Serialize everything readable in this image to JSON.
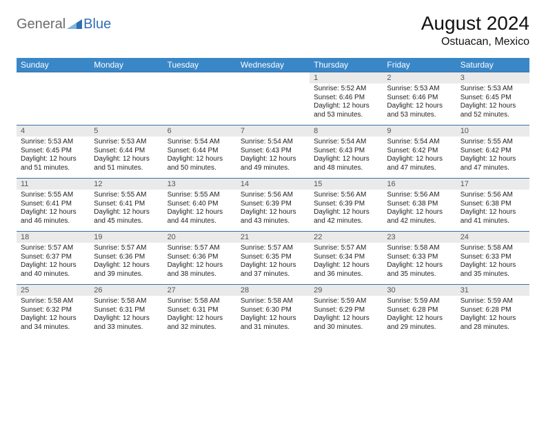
{
  "logo": {
    "general": "General",
    "blue": "Blue"
  },
  "title": {
    "month": "August 2024",
    "location": "Ostuacan, Mexico"
  },
  "colors": {
    "header_bg": "#3a87c8",
    "header_text": "#ffffff",
    "row_divider": "#3a6fa3",
    "daynum_bg": "#eaeaea",
    "daynum_text": "#555555",
    "body_text": "#222222",
    "logo_general": "#6b6b6b",
    "logo_blue": "#2f6fb3",
    "page_bg": "#ffffff"
  },
  "typography": {
    "month_title_pt": 28,
    "location_pt": 16,
    "weekday_header_pt": 12,
    "daynum_pt": 11,
    "cell_text_pt": 10,
    "logo_pt": 20
  },
  "weekdays": [
    "Sunday",
    "Monday",
    "Tuesday",
    "Wednesday",
    "Thursday",
    "Friday",
    "Saturday"
  ],
  "first_weekday_index": 4,
  "num_days": 31,
  "days": {
    "1": {
      "sunrise": "5:52 AM",
      "sunset": "6:46 PM",
      "daylight": "12 hours and 53 minutes."
    },
    "2": {
      "sunrise": "5:53 AM",
      "sunset": "6:46 PM",
      "daylight": "12 hours and 53 minutes."
    },
    "3": {
      "sunrise": "5:53 AM",
      "sunset": "6:45 PM",
      "daylight": "12 hours and 52 minutes."
    },
    "4": {
      "sunrise": "5:53 AM",
      "sunset": "6:45 PM",
      "daylight": "12 hours and 51 minutes."
    },
    "5": {
      "sunrise": "5:53 AM",
      "sunset": "6:44 PM",
      "daylight": "12 hours and 51 minutes."
    },
    "6": {
      "sunrise": "5:54 AM",
      "sunset": "6:44 PM",
      "daylight": "12 hours and 50 minutes."
    },
    "7": {
      "sunrise": "5:54 AM",
      "sunset": "6:43 PM",
      "daylight": "12 hours and 49 minutes."
    },
    "8": {
      "sunrise": "5:54 AM",
      "sunset": "6:43 PM",
      "daylight": "12 hours and 48 minutes."
    },
    "9": {
      "sunrise": "5:54 AM",
      "sunset": "6:42 PM",
      "daylight": "12 hours and 47 minutes."
    },
    "10": {
      "sunrise": "5:55 AM",
      "sunset": "6:42 PM",
      "daylight": "12 hours and 47 minutes."
    },
    "11": {
      "sunrise": "5:55 AM",
      "sunset": "6:41 PM",
      "daylight": "12 hours and 46 minutes."
    },
    "12": {
      "sunrise": "5:55 AM",
      "sunset": "6:41 PM",
      "daylight": "12 hours and 45 minutes."
    },
    "13": {
      "sunrise": "5:55 AM",
      "sunset": "6:40 PM",
      "daylight": "12 hours and 44 minutes."
    },
    "14": {
      "sunrise": "5:56 AM",
      "sunset": "6:39 PM",
      "daylight": "12 hours and 43 minutes."
    },
    "15": {
      "sunrise": "5:56 AM",
      "sunset": "6:39 PM",
      "daylight": "12 hours and 42 minutes."
    },
    "16": {
      "sunrise": "5:56 AM",
      "sunset": "6:38 PM",
      "daylight": "12 hours and 42 minutes."
    },
    "17": {
      "sunrise": "5:56 AM",
      "sunset": "6:38 PM",
      "daylight": "12 hours and 41 minutes."
    },
    "18": {
      "sunrise": "5:57 AM",
      "sunset": "6:37 PM",
      "daylight": "12 hours and 40 minutes."
    },
    "19": {
      "sunrise": "5:57 AM",
      "sunset": "6:36 PM",
      "daylight": "12 hours and 39 minutes."
    },
    "20": {
      "sunrise": "5:57 AM",
      "sunset": "6:36 PM",
      "daylight": "12 hours and 38 minutes."
    },
    "21": {
      "sunrise": "5:57 AM",
      "sunset": "6:35 PM",
      "daylight": "12 hours and 37 minutes."
    },
    "22": {
      "sunrise": "5:57 AM",
      "sunset": "6:34 PM",
      "daylight": "12 hours and 36 minutes."
    },
    "23": {
      "sunrise": "5:58 AM",
      "sunset": "6:33 PM",
      "daylight": "12 hours and 35 minutes."
    },
    "24": {
      "sunrise": "5:58 AM",
      "sunset": "6:33 PM",
      "daylight": "12 hours and 35 minutes."
    },
    "25": {
      "sunrise": "5:58 AM",
      "sunset": "6:32 PM",
      "daylight": "12 hours and 34 minutes."
    },
    "26": {
      "sunrise": "5:58 AM",
      "sunset": "6:31 PM",
      "daylight": "12 hours and 33 minutes."
    },
    "27": {
      "sunrise": "5:58 AM",
      "sunset": "6:31 PM",
      "daylight": "12 hours and 32 minutes."
    },
    "28": {
      "sunrise": "5:58 AM",
      "sunset": "6:30 PM",
      "daylight": "12 hours and 31 minutes."
    },
    "29": {
      "sunrise": "5:59 AM",
      "sunset": "6:29 PM",
      "daylight": "12 hours and 30 minutes."
    },
    "30": {
      "sunrise": "5:59 AM",
      "sunset": "6:28 PM",
      "daylight": "12 hours and 29 minutes."
    },
    "31": {
      "sunrise": "5:59 AM",
      "sunset": "6:28 PM",
      "daylight": "12 hours and 28 minutes."
    }
  },
  "labels": {
    "sunrise": "Sunrise: ",
    "sunset": "Sunset: ",
    "daylight": "Daylight: "
  }
}
